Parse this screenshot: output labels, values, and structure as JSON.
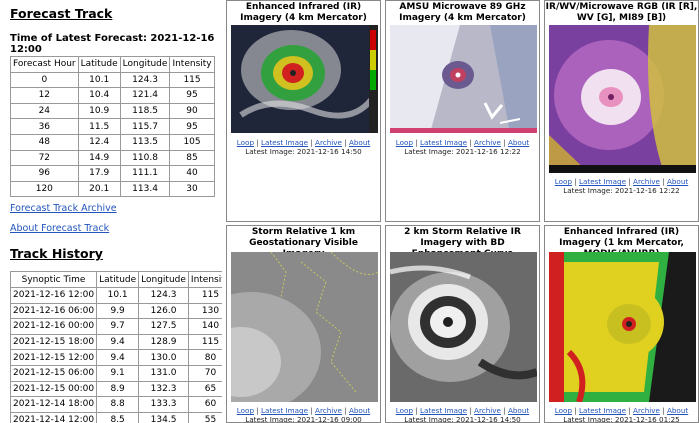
{
  "forecast": {
    "title": "Forecast Track",
    "latest_label": "Time of Latest Forecast: 2021-12-16 12:00",
    "headers": [
      "Forecast Hour",
      "Latitude",
      "Longitude",
      "Intensity"
    ],
    "rows": [
      [
        "0",
        "10.1",
        "124.3",
        "115"
      ],
      [
        "12",
        "10.4",
        "121.4",
        "95"
      ],
      [
        "24",
        "10.9",
        "118.5",
        "90"
      ],
      [
        "36",
        "11.5",
        "115.7",
        "95"
      ],
      [
        "48",
        "12.4",
        "113.5",
        "105"
      ],
      [
        "72",
        "14.9",
        "110.8",
        "85"
      ],
      [
        "96",
        "17.9",
        "111.1",
        "40"
      ],
      [
        "120",
        "20.1",
        "113.4",
        "30"
      ]
    ],
    "archive_link": "Forecast Track Archive",
    "about_link": "About Forecast Track"
  },
  "history": {
    "title": "Track History",
    "headers": [
      "Synoptic Time",
      "Latitude",
      "Longitude",
      "Intensity"
    ],
    "rows": [
      [
        "2021-12-16 12:00",
        "10.1",
        "124.3",
        "115"
      ],
      [
        "2021-12-16 06:00",
        "9.9",
        "126.0",
        "130"
      ],
      [
        "2021-12-16 00:00",
        "9.7",
        "127.5",
        "140"
      ],
      [
        "2021-12-15 18:00",
        "9.4",
        "128.9",
        "115"
      ],
      [
        "2021-12-15 12:00",
        "9.4",
        "130.0",
        "80"
      ],
      [
        "2021-12-15 06:00",
        "9.1",
        "131.0",
        "70"
      ],
      [
        "2021-12-15 00:00",
        "8.9",
        "132.3",
        "65"
      ],
      [
        "2021-12-14 18:00",
        "8.8",
        "133.3",
        "60"
      ],
      [
        "2021-12-14 12:00",
        "8.5",
        "134.5",
        "55"
      ]
    ]
  },
  "link_labels": {
    "loop": "Loop",
    "latest": "Latest Image",
    "archive": "Archive",
    "about": "About",
    "sep": " | "
  },
  "panels": [
    {
      "title": "Enhanced Infrared (IR) Imagery (4 km Mercator)",
      "date": "Latest Image: 2021-12-16 14:50",
      "img_icon": "enhanced-ir-satellite-image"
    },
    {
      "title": "AMSU Microwave 89 GHz Imagery (4 km Mercator)",
      "date": "Latest Image: 2021-12-16 12:22",
      "img_icon": "microwave-89ghz-satellite-image"
    },
    {
      "title": "IR/WV/Microwave RGB (IR [R], WV [G], MI89 [B])",
      "date": "Latest Image: 2021-12-16 12:22",
      "img_icon": "rgb-composite-satellite-image"
    },
    {
      "title": "Storm Relative 1 km Geostationary Visible Imagery",
      "date": "Latest Image: 2021-12-16 09:00",
      "img_icon": "visible-satellite-image"
    },
    {
      "title": "2 km Storm Relative IR Imagery with BD Enhancement Curve",
      "date": "Latest Image: 2021-12-16 14:50",
      "img_icon": "bd-enhanced-ir-image"
    },
    {
      "title": "Enhanced Infrared (IR) Imagery (1 km Mercator, MODIS/AVHRR)",
      "date": "Latest Image: 2021-12-16 01:25",
      "img_icon": "modis-avhrr-ir-image"
    }
  ]
}
